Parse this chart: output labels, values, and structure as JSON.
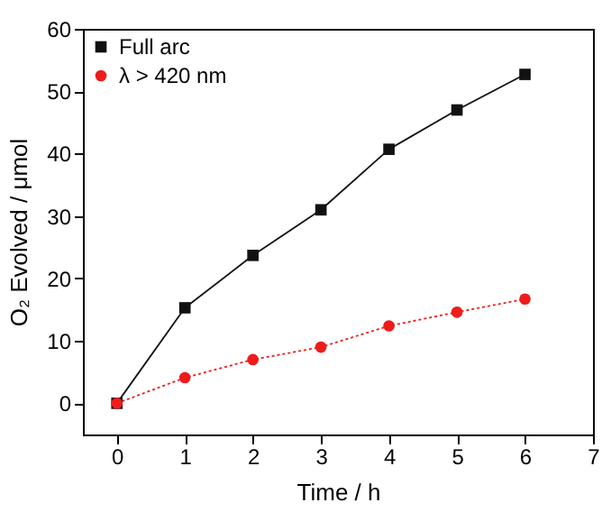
{
  "chart_data": {
    "type": "line",
    "xlabel": "Time / h",
    "ylabel": "O₂ Evolved / μmol",
    "x": [
      0,
      1,
      2,
      3,
      4,
      5,
      6
    ],
    "series": [
      {
        "name": "Full arc",
        "color": "#111111",
        "marker": "square",
        "line_style": "solid",
        "values": [
          0,
          15.3,
          23.7,
          31,
          40.7,
          47,
          52.7
        ]
      },
      {
        "name": "λ > 420 nm",
        "color": "#ee1c1c",
        "marker": "circle",
        "line_style": "dotted",
        "values": [
          0,
          4.1,
          7,
          9,
          12.4,
          14.6,
          16.7
        ]
      }
    ],
    "xlim": [
      -0.5,
      7
    ],
    "xticks": [
      0,
      1,
      2,
      3,
      4,
      5,
      6,
      7
    ],
    "ylim": [
      -5,
      60
    ],
    "yticks": [
      0,
      10,
      20,
      30,
      40,
      50,
      60
    ],
    "grid": false,
    "legend": "top left"
  }
}
